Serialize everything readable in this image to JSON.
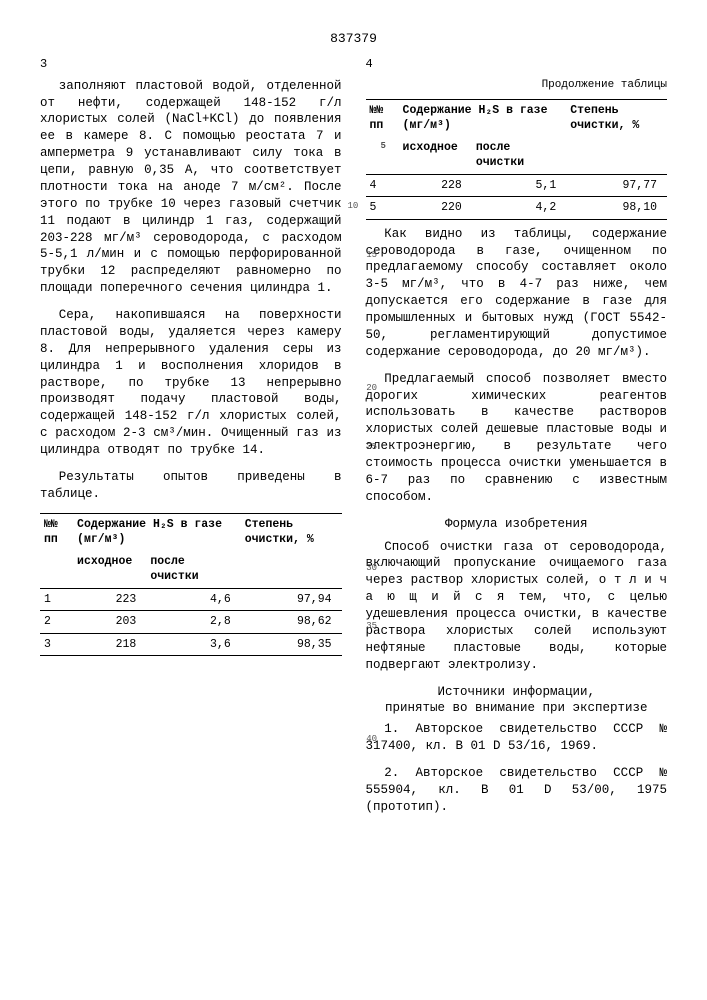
{
  "doc_number": "837379",
  "left_header": "3",
  "right_header": "4",
  "left_col": {
    "p1": "заполняют пластовой водой, отделенной от нефти, содержащей 148-152 г/л хлористых солей (NaCl+KCl) до появления ее в камере 8. С помощью реостата 7 и амперметра 9 устанавливают силу тока в цепи, равную 0,35 А, что соответствует плотности тока на аноде 7 м/см². После этого по трубке 10 через газовый счетчик 11 подают в цилиндр 1 газ, содержащий 203-228 мг/м³ сероводорода, с расходом 5-5,1 л/мин и с помощью перфорированной трубки 12 распределяют равномерно по площади поперечного сечения цилиндра 1.",
    "p2": "Сера, накопившаяся на поверхности пластовой воды, удаляется через камеру 8. Для непрерывного удаления серы из цилиндра 1 и восполнения хлоридов в растворе, по трубке 13 непрерывно производят подачу пластовой воды, содержащей 148-152 г/л хлористых солей, с расходом 2-3 см³/мин. Очищенный газ из цилиндра отводят по трубке 14.",
    "p3": "Результаты опытов приведены в таблице."
  },
  "table1": {
    "headers": {
      "no": "№№\nпп",
      "content": "Содержание H₂S в газе (мг/м³)",
      "sub1": "исходное",
      "sub2": "после очистки",
      "degree": "Степень очистки, %"
    },
    "rows": [
      {
        "n": "1",
        "a": "223",
        "b": "4,6",
        "c": "97,94"
      },
      {
        "n": "2",
        "a": "203",
        "b": "2,8",
        "c": "98,62"
      },
      {
        "n": "3",
        "a": "218",
        "b": "3,6",
        "c": "98,35"
      }
    ]
  },
  "table2": {
    "cont": "Продолжение таблицы",
    "headers": {
      "no": "№№\nпп",
      "content": "Содержание H₂S в газе (мг/м³)",
      "sub1": "исходное",
      "sub2": "после очистки",
      "degree": "Степень очистки, %"
    },
    "rows": [
      {
        "n": "4",
        "a": "228",
        "b": "5,1",
        "c": "97,77"
      },
      {
        "n": "5",
        "a": "220",
        "b": "4,2",
        "c": "98,10"
      }
    ]
  },
  "right_col": {
    "p1": "Как видно из таблицы, содержание сероводорода в газе, очищенном по предлагаемому способу составляет около 3-5 мг/м³, что в 4-7 раз ниже, чем допускается его содержание в газе для промышленных и бытовых нужд (ГОСТ 5542-50, регламентирующий допустимое содержание сероводорода, до 20 мг/м³).",
    "p2": "Предлагаемый способ позволяет вместо дорогих химических реагентов использовать в качестве растворов хлористых солей дешевые пластовые воды и электроэнергию, в результате чего стоимость процесса очистки уменьшается в 6-7 раз по сравнению с известным способом.",
    "formula_title": "Формула изобретения",
    "formula": "Способ очистки газа от сероводорода, включающий пропускание очищаемого газа через раствор хлористых солей, о т л и ч а ю щ и й с я  тем, что, с целью удешевления процесса очистки, в качестве раствора хлористых солей используют нефтяные пластовые воды, которые подвергают электролизу.",
    "sources_title": "Источники информации,\nпринятые во внимание при экспертизе",
    "src1": "1. Авторское свидетельство СССР № 317400, кл. B 01 D 53/16, 1969.",
    "src2": "2. Авторское свидетельство СССР № 555904, кл. B 01 D 53/00, 1975 (прототип).",
    "ln5": "5",
    "ln10": "10",
    "ln15": "15",
    "ln20": "20",
    "ln25": "25",
    "ln30": "30",
    "ln35": "35",
    "ln40": "40"
  }
}
